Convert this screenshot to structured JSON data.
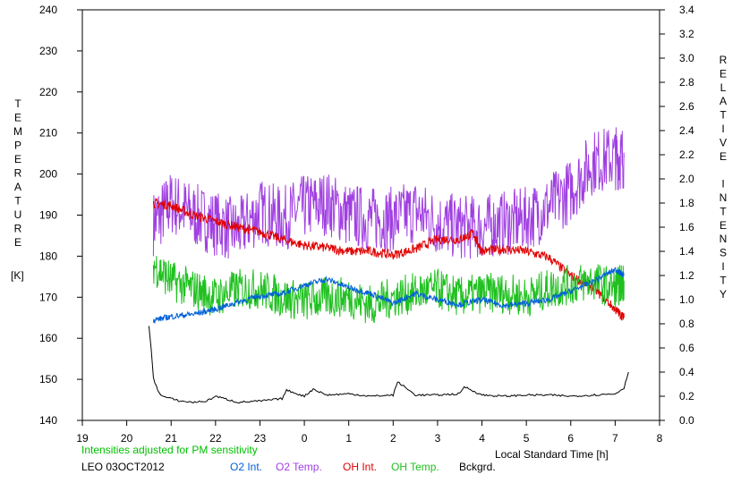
{
  "chart_data": {
    "type": "line",
    "note_title": "Intensities adjusted for PM sensitivity",
    "station": "LEO 03OCT2012",
    "xlabel": "Local Standard Time [h]",
    "y_left_label": "TEMPERATURE",
    "y_left_unit": "[K]",
    "y_right_label": "RELATIVE INTENSITY",
    "x_ticks": [
      "19",
      "20",
      "21",
      "22",
      "23",
      "0",
      "1",
      "2",
      "3",
      "4",
      "5",
      "6",
      "7",
      "8"
    ],
    "y_left_ticks": [
      "140",
      "150",
      "160",
      "170",
      "180",
      "190",
      "200",
      "210",
      "220",
      "230",
      "240"
    ],
    "y_right_ticks": [
      "0.0",
      "0.2",
      "0.4",
      "0.6",
      "0.8",
      "1.0",
      "1.2",
      "1.4",
      "1.6",
      "1.8",
      "2.0",
      "2.2",
      "2.4",
      "2.6",
      "2.8",
      "3.0",
      "3.2",
      "3.4"
    ],
    "xlim": [
      19,
      32
    ],
    "ylim_left": [
      140,
      240
    ],
    "ylim_right": [
      0.0,
      3.4
    ],
    "grid": false,
    "legend_position": "bottom",
    "colors": {
      "axis": "#000000",
      "note": "#00c000",
      "o2_int": "#0060d8",
      "o2_temp": "#a040e0",
      "oh_int": "#e00000",
      "oh_temp": "#20c020",
      "bckgrd": "#000000"
    },
    "series": [
      {
        "key": "o2_temp",
        "name": "O2 Temp.",
        "axis": "left",
        "x": [
          20.6,
          21.0,
          21.5,
          22.0,
          22.5,
          23.0,
          23.5,
          24.0,
          24.5,
          25.0,
          25.5,
          26.0,
          26.5,
          27.0,
          27.5,
          28.0,
          28.5,
          29.0,
          29.5,
          30.0,
          30.5,
          31.0,
          31.2
        ],
        "y": [
          188,
          193,
          190,
          188,
          186,
          191,
          189,
          192,
          193,
          190,
          189,
          189,
          191,
          188,
          187,
          187,
          188,
          189,
          192,
          196,
          203,
          204,
          204
        ],
        "jitter": 8
      },
      {
        "key": "oh_int",
        "name": "OH Int.",
        "axis": "right",
        "x": [
          20.6,
          21.0,
          21.5,
          22.0,
          22.5,
          23.0,
          23.5,
          24.0,
          24.5,
          25.0,
          25.5,
          26.0,
          26.5,
          27.0,
          27.5,
          27.8,
          28.0,
          28.5,
          29.0,
          29.5,
          30.0,
          30.5,
          31.0,
          31.2
        ],
        "y": [
          1.8,
          1.78,
          1.7,
          1.65,
          1.6,
          1.56,
          1.5,
          1.45,
          1.43,
          1.4,
          1.4,
          1.37,
          1.42,
          1.5,
          1.5,
          1.55,
          1.4,
          1.42,
          1.4,
          1.35,
          1.2,
          1.1,
          0.92,
          0.85
        ],
        "jitter": 0.04
      },
      {
        "key": "oh_temp",
        "name": "OH Temp.",
        "axis": "left",
        "x": [
          20.6,
          21.0,
          21.5,
          22.0,
          22.5,
          23.0,
          23.5,
          24.0,
          24.5,
          25.0,
          25.5,
          26.0,
          26.5,
          27.0,
          27.5,
          28.0,
          28.5,
          29.0,
          29.5,
          30.0,
          30.5,
          31.0,
          31.2
        ],
        "y": [
          178,
          174,
          172,
          170,
          172,
          172,
          170,
          169,
          170,
          170,
          168,
          170,
          171,
          172,
          170,
          171,
          171,
          170,
          172,
          173,
          174,
          172,
          174
        ],
        "jitter": 5
      },
      {
        "key": "o2_int",
        "name": "O2 Int.",
        "axis": "right",
        "x": [
          20.6,
          21.0,
          21.5,
          22.0,
          22.5,
          23.0,
          23.5,
          24.0,
          24.5,
          25.0,
          25.5,
          26.0,
          26.5,
          27.0,
          27.5,
          28.0,
          28.5,
          29.0,
          29.5,
          30.0,
          30.5,
          31.0,
          31.2
        ],
        "y": [
          0.83,
          0.86,
          0.88,
          0.92,
          0.98,
          1.03,
          1.05,
          1.12,
          1.17,
          1.1,
          1.05,
          0.97,
          1.05,
          1.0,
          0.96,
          1.0,
          0.95,
          0.97,
          1.0,
          1.07,
          1.15,
          1.25,
          1.2
        ],
        "jitter": 0.025
      },
      {
        "key": "bckgrd",
        "name": "Bckgrd.",
        "axis": "right",
        "x": [
          20.5,
          20.55,
          20.6,
          20.7,
          20.8,
          21.0,
          21.2,
          21.5,
          21.8,
          22.0,
          22.5,
          23.0,
          23.5,
          23.6,
          24.0,
          24.2,
          24.5,
          25.0,
          25.5,
          26.0,
          26.1,
          26.5,
          27.0,
          27.5,
          27.6,
          28.0,
          28.5,
          29.0,
          29.5,
          30.0,
          30.5,
          31.0,
          31.2,
          31.3
        ],
        "y": [
          0.78,
          0.6,
          0.35,
          0.25,
          0.2,
          0.18,
          0.16,
          0.15,
          0.16,
          0.2,
          0.15,
          0.16,
          0.18,
          0.25,
          0.2,
          0.26,
          0.21,
          0.22,
          0.2,
          0.21,
          0.32,
          0.21,
          0.21,
          0.22,
          0.28,
          0.21,
          0.2,
          0.21,
          0.21,
          0.2,
          0.21,
          0.22,
          0.27,
          0.4
        ],
        "jitter": 0.008
      }
    ]
  }
}
